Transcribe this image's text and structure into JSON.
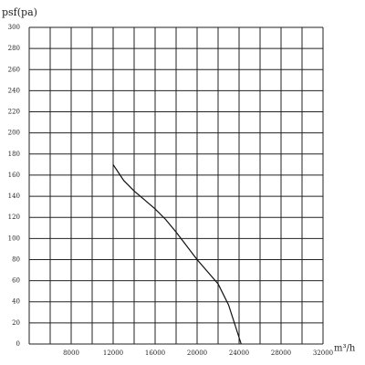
{
  "chart_data": {
    "type": "line",
    "y_label": "psf(pa)",
    "x_label": "m³/h",
    "x": [
      12000,
      13000,
      14000,
      16000,
      17000,
      18000,
      20000,
      22000,
      23000,
      24200
    ],
    "series": [
      {
        "values": [
          170,
          155,
          145,
          128,
          118,
          106,
          80,
          57,
          37,
          0
        ],
        "color": "#111"
      }
    ],
    "xlim": [
      4000,
      32000
    ],
    "xticks": [
      8000,
      12000,
      16000,
      20000,
      24000,
      28000,
      32000
    ],
    "xgrid": [
      4000,
      6000,
      8000,
      10000,
      12000,
      14000,
      16000,
      18000,
      20000,
      22000,
      24000,
      26000,
      28000,
      30000,
      32000
    ],
    "ylim": [
      0,
      300
    ],
    "yticks": [
      0,
      20,
      40,
      60,
      80,
      100,
      120,
      140,
      160,
      180,
      200,
      220,
      240,
      260,
      280,
      300
    ],
    "grid": true
  }
}
